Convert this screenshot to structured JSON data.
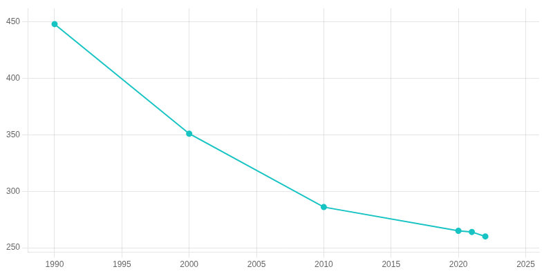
{
  "chart_data": {
    "type": "line",
    "x": [
      1990,
      2000,
      2010,
      2020,
      2021,
      2022
    ],
    "values": [
      448,
      351,
      286,
      265,
      264,
      260
    ],
    "color": "#17c3c3",
    "marker": "circle",
    "xlim": [
      1988,
      2026
    ],
    "xticks": [
      1990,
      1995,
      2000,
      2005,
      2010,
      2015,
      2020,
      2025
    ],
    "ylim": [
      246,
      462
    ],
    "yticks": [
      250,
      300,
      350,
      400,
      450
    ],
    "grid": true
  }
}
